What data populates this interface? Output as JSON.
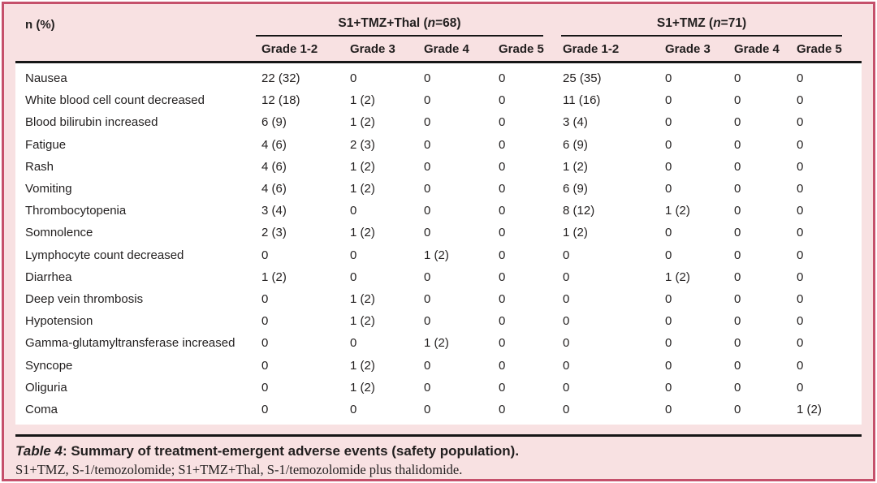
{
  "colors": {
    "border": "#c5506b",
    "background": "#f8e1e2",
    "panel": "#ffffff",
    "line": "#161616",
    "text": "#221f1f"
  },
  "table": {
    "corner_label": "n (%)",
    "groups": [
      {
        "prefix": "S1+TMZ+Thal (",
        "italic": "n",
        "suffix": "=68)"
      },
      {
        "prefix": "S1+TMZ (",
        "italic": "n",
        "suffix": "=71)"
      }
    ],
    "grade_headers": [
      "Grade 1-2",
      "Grade 3",
      "Grade 4",
      "Grade 5",
      "Grade 1-2",
      "Grade 3",
      "Grade 4",
      "Grade 5"
    ],
    "rows": [
      {
        "label": "Nausea",
        "values": [
          "22 (32)",
          "0",
          "0",
          "0",
          "25 (35)",
          "0",
          "0",
          "0"
        ]
      },
      {
        "label": "White blood cell count decreased",
        "values": [
          "12 (18)",
          "1 (2)",
          "0",
          "0",
          "11 (16)",
          "0",
          "0",
          "0"
        ]
      },
      {
        "label": "Blood bilirubin increased",
        "values": [
          "6 (9)",
          "1 (2)",
          "0",
          "0",
          "3 (4)",
          "0",
          "0",
          "0"
        ]
      },
      {
        "label": "Fatigue",
        "values": [
          "4 (6)",
          "2 (3)",
          "0",
          "0",
          "6 (9)",
          "0",
          "0",
          "0"
        ]
      },
      {
        "label": "Rash",
        "values": [
          "4 (6)",
          "1 (2)",
          "0",
          "0",
          "1 (2)",
          "0",
          "0",
          "0"
        ]
      },
      {
        "label": "Vomiting",
        "values": [
          "4 (6)",
          "1 (2)",
          "0",
          "0",
          "6 (9)",
          "0",
          "0",
          "0"
        ]
      },
      {
        "label": "Thrombocytopenia",
        "values": [
          "3 (4)",
          "0",
          "0",
          "0",
          "8 (12)",
          "1 (2)",
          "0",
          "0"
        ]
      },
      {
        "label": "Somnolence",
        "values": [
          "2 (3)",
          "1 (2)",
          "0",
          "0",
          "1 (2)",
          "0",
          "0",
          "0"
        ]
      },
      {
        "label": "Lymphocyte count decreased",
        "values": [
          "0",
          "0",
          "1 (2)",
          "0",
          "0",
          "0",
          "0",
          "0"
        ]
      },
      {
        "label": "Diarrhea",
        "values": [
          "1 (2)",
          "0",
          "0",
          "0",
          "0",
          "1 (2)",
          "0",
          "0"
        ]
      },
      {
        "label": "Deep vein thrombosis",
        "values": [
          "0",
          "1 (2)",
          "0",
          "0",
          "0",
          "0",
          "0",
          "0"
        ]
      },
      {
        "label": "Hypotension",
        "values": [
          "0",
          "1 (2)",
          "0",
          "0",
          "0",
          "0",
          "0",
          "0"
        ]
      },
      {
        "label": "Gamma-glutamyltransferase increased",
        "values": [
          "0",
          "0",
          "1 (2)",
          "0",
          "0",
          "0",
          "0",
          "0"
        ]
      },
      {
        "label": "Syncope",
        "values": [
          "0",
          "1 (2)",
          "0",
          "0",
          "0",
          "0",
          "0",
          "0"
        ]
      },
      {
        "label": "Oliguria",
        "values": [
          "0",
          "1 (2)",
          "0",
          "0",
          "0",
          "0",
          "0",
          "0"
        ]
      },
      {
        "label": "Coma",
        "values": [
          "0",
          "0",
          "0",
          "0",
          "0",
          "0",
          "0",
          "1 (2)"
        ]
      }
    ]
  },
  "caption": {
    "title_italic": "Table 4",
    "title_rest": ": Summary of treatment-emergent adverse events (safety population).",
    "footnote": "S1+TMZ, S-1/temozolomide; S1+TMZ+Thal, S-1/temozolomide plus thalidomide."
  }
}
